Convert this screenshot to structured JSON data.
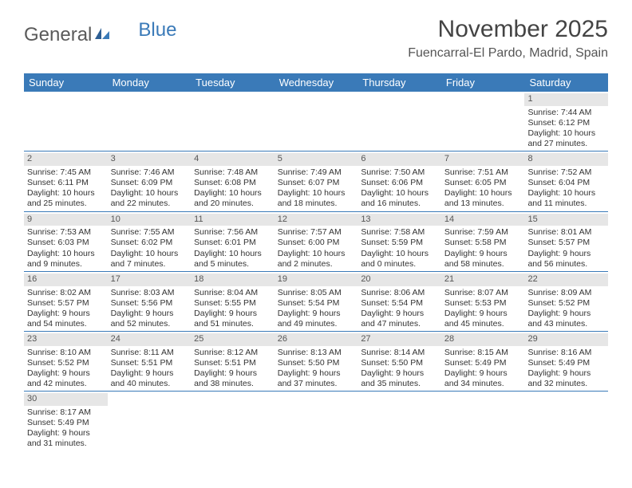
{
  "logo": {
    "text1": "General",
    "text2": "Blue"
  },
  "title": "November 2025",
  "location": "Fuencarral-El Pardo, Madrid, Spain",
  "colors": {
    "header_bg": "#3a7ab8",
    "daynum_bg": "#e6e6e6",
    "rule": "#3a7ab8",
    "text": "#333333",
    "title_text": "#444444"
  },
  "day_headers": [
    "Sunday",
    "Monday",
    "Tuesday",
    "Wednesday",
    "Thursday",
    "Friday",
    "Saturday"
  ],
  "weeks": [
    [
      null,
      null,
      null,
      null,
      null,
      null,
      {
        "n": "1",
        "sr": "Sunrise: 7:44 AM",
        "ss": "Sunset: 6:12 PM",
        "dl": "Daylight: 10 hours and 27 minutes."
      }
    ],
    [
      {
        "n": "2",
        "sr": "Sunrise: 7:45 AM",
        "ss": "Sunset: 6:11 PM",
        "dl": "Daylight: 10 hours and 25 minutes."
      },
      {
        "n": "3",
        "sr": "Sunrise: 7:46 AM",
        "ss": "Sunset: 6:09 PM",
        "dl": "Daylight: 10 hours and 22 minutes."
      },
      {
        "n": "4",
        "sr": "Sunrise: 7:48 AM",
        "ss": "Sunset: 6:08 PM",
        "dl": "Daylight: 10 hours and 20 minutes."
      },
      {
        "n": "5",
        "sr": "Sunrise: 7:49 AM",
        "ss": "Sunset: 6:07 PM",
        "dl": "Daylight: 10 hours and 18 minutes."
      },
      {
        "n": "6",
        "sr": "Sunrise: 7:50 AM",
        "ss": "Sunset: 6:06 PM",
        "dl": "Daylight: 10 hours and 16 minutes."
      },
      {
        "n": "7",
        "sr": "Sunrise: 7:51 AM",
        "ss": "Sunset: 6:05 PM",
        "dl": "Daylight: 10 hours and 13 minutes."
      },
      {
        "n": "8",
        "sr": "Sunrise: 7:52 AM",
        "ss": "Sunset: 6:04 PM",
        "dl": "Daylight: 10 hours and 11 minutes."
      }
    ],
    [
      {
        "n": "9",
        "sr": "Sunrise: 7:53 AM",
        "ss": "Sunset: 6:03 PM",
        "dl": "Daylight: 10 hours and 9 minutes."
      },
      {
        "n": "10",
        "sr": "Sunrise: 7:55 AM",
        "ss": "Sunset: 6:02 PM",
        "dl": "Daylight: 10 hours and 7 minutes."
      },
      {
        "n": "11",
        "sr": "Sunrise: 7:56 AM",
        "ss": "Sunset: 6:01 PM",
        "dl": "Daylight: 10 hours and 5 minutes."
      },
      {
        "n": "12",
        "sr": "Sunrise: 7:57 AM",
        "ss": "Sunset: 6:00 PM",
        "dl": "Daylight: 10 hours and 2 minutes."
      },
      {
        "n": "13",
        "sr": "Sunrise: 7:58 AM",
        "ss": "Sunset: 5:59 PM",
        "dl": "Daylight: 10 hours and 0 minutes."
      },
      {
        "n": "14",
        "sr": "Sunrise: 7:59 AM",
        "ss": "Sunset: 5:58 PM",
        "dl": "Daylight: 9 hours and 58 minutes."
      },
      {
        "n": "15",
        "sr": "Sunrise: 8:01 AM",
        "ss": "Sunset: 5:57 PM",
        "dl": "Daylight: 9 hours and 56 minutes."
      }
    ],
    [
      {
        "n": "16",
        "sr": "Sunrise: 8:02 AM",
        "ss": "Sunset: 5:57 PM",
        "dl": "Daylight: 9 hours and 54 minutes."
      },
      {
        "n": "17",
        "sr": "Sunrise: 8:03 AM",
        "ss": "Sunset: 5:56 PM",
        "dl": "Daylight: 9 hours and 52 minutes."
      },
      {
        "n": "18",
        "sr": "Sunrise: 8:04 AM",
        "ss": "Sunset: 5:55 PM",
        "dl": "Daylight: 9 hours and 51 minutes."
      },
      {
        "n": "19",
        "sr": "Sunrise: 8:05 AM",
        "ss": "Sunset: 5:54 PM",
        "dl": "Daylight: 9 hours and 49 minutes."
      },
      {
        "n": "20",
        "sr": "Sunrise: 8:06 AM",
        "ss": "Sunset: 5:54 PM",
        "dl": "Daylight: 9 hours and 47 minutes."
      },
      {
        "n": "21",
        "sr": "Sunrise: 8:07 AM",
        "ss": "Sunset: 5:53 PM",
        "dl": "Daylight: 9 hours and 45 minutes."
      },
      {
        "n": "22",
        "sr": "Sunrise: 8:09 AM",
        "ss": "Sunset: 5:52 PM",
        "dl": "Daylight: 9 hours and 43 minutes."
      }
    ],
    [
      {
        "n": "23",
        "sr": "Sunrise: 8:10 AM",
        "ss": "Sunset: 5:52 PM",
        "dl": "Daylight: 9 hours and 42 minutes."
      },
      {
        "n": "24",
        "sr": "Sunrise: 8:11 AM",
        "ss": "Sunset: 5:51 PM",
        "dl": "Daylight: 9 hours and 40 minutes."
      },
      {
        "n": "25",
        "sr": "Sunrise: 8:12 AM",
        "ss": "Sunset: 5:51 PM",
        "dl": "Daylight: 9 hours and 38 minutes."
      },
      {
        "n": "26",
        "sr": "Sunrise: 8:13 AM",
        "ss": "Sunset: 5:50 PM",
        "dl": "Daylight: 9 hours and 37 minutes."
      },
      {
        "n": "27",
        "sr": "Sunrise: 8:14 AM",
        "ss": "Sunset: 5:50 PM",
        "dl": "Daylight: 9 hours and 35 minutes."
      },
      {
        "n": "28",
        "sr": "Sunrise: 8:15 AM",
        "ss": "Sunset: 5:49 PM",
        "dl": "Daylight: 9 hours and 34 minutes."
      },
      {
        "n": "29",
        "sr": "Sunrise: 8:16 AM",
        "ss": "Sunset: 5:49 PM",
        "dl": "Daylight: 9 hours and 32 minutes."
      }
    ],
    [
      {
        "n": "30",
        "sr": "Sunrise: 8:17 AM",
        "ss": "Sunset: 5:49 PM",
        "dl": "Daylight: 9 hours and 31 minutes."
      },
      null,
      null,
      null,
      null,
      null,
      null
    ]
  ]
}
